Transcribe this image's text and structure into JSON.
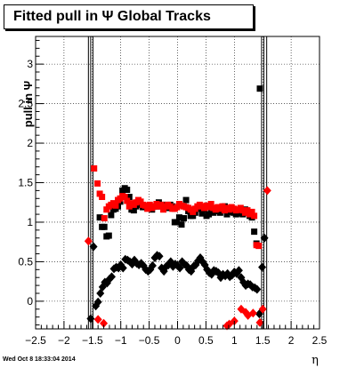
{
  "chart_data": {
    "type": "scatter",
    "title": "Fitted pull in Ψ   Global Tracks",
    "xlabel": "η",
    "ylabel": "pull in Ψ",
    "xlim": [
      -2.5,
      2.5
    ],
    "ylim": [
      -0.35,
      3.35
    ],
    "x_ticks": [
      "−2.5",
      "−2",
      "−1.5",
      "−1",
      "−0.5",
      "0",
      "0.5",
      "1",
      "1.5",
      "2",
      "2.5"
    ],
    "x_tick_values": [
      -2.5,
      -2,
      -1.5,
      -1,
      -0.5,
      0,
      0.5,
      1,
      1.5,
      2,
      2.5
    ],
    "y_ticks": [
      "0",
      "0.5",
      "1",
      "1.5",
      "2",
      "2.5",
      "3"
    ],
    "y_tick_values": [
      0,
      0.5,
      1,
      1.5,
      2,
      2.5,
      3
    ],
    "grid": true,
    "vertical_lines": [
      -1.57,
      -1.53,
      -1.49,
      1.48,
      1.52,
      1.57
    ],
    "series": [
      {
        "marker": "square",
        "color": "#000000",
        "points": [
          [
            -1.37,
            1.06
          ],
          [
            -1.33,
            0.94
          ],
          [
            -1.29,
            0.94
          ],
          [
            -1.25,
            0.82
          ],
          [
            -1.21,
            0.83
          ],
          [
            -1.17,
            1.09
          ],
          [
            -1.13,
            1.16
          ],
          [
            -1.09,
            1.17
          ],
          [
            -1.05,
            1.2
          ],
          [
            -1.01,
            1.26
          ],
          [
            -0.97,
            1.4
          ],
          [
            -0.93,
            1.43
          ],
          [
            -0.89,
            1.41
          ],
          [
            -0.85,
            1.32
          ],
          [
            -0.81,
            1.16
          ],
          [
            -0.77,
            1.15
          ],
          [
            -0.73,
            1.2
          ],
          [
            -0.69,
            1.23
          ],
          [
            -0.65,
            1.22
          ],
          [
            -0.61,
            1.19
          ],
          [
            -0.57,
            1.2
          ],
          [
            -0.53,
            1.18
          ],
          [
            -0.49,
            1.19
          ],
          [
            -0.45,
            1.16
          ],
          [
            -0.41,
            1.2
          ],
          [
            -0.37,
            1.2
          ],
          [
            -0.33,
            1.25
          ],
          [
            -0.29,
            1.2
          ],
          [
            -0.25,
            1.22
          ],
          [
            -0.21,
            1.19
          ],
          [
            -0.17,
            1.18
          ],
          [
            -0.13,
            1.22
          ],
          [
            -0.09,
            1.2
          ],
          [
            -0.05,
            1.0
          ],
          [
            -0.01,
            1.0
          ],
          [
            0.03,
            1.06
          ],
          [
            0.07,
            0.97
          ],
          [
            0.11,
            1.05
          ],
          [
            0.15,
            1.28
          ],
          [
            0.19,
            1.14
          ],
          [
            0.23,
            1.08
          ],
          [
            0.27,
            1.08
          ],
          [
            0.31,
            1.12
          ],
          [
            0.35,
            1.17
          ],
          [
            0.39,
            1.17
          ],
          [
            0.43,
            1.11
          ],
          [
            0.47,
            1.16
          ],
          [
            0.51,
            1.08
          ],
          [
            0.55,
            1.1
          ],
          [
            0.59,
            1.15
          ],
          [
            0.63,
            1.12
          ],
          [
            0.67,
            1.16
          ],
          [
            0.71,
            1.14
          ],
          [
            0.75,
            1.12
          ],
          [
            0.79,
            1.18
          ],
          [
            0.83,
            1.2
          ],
          [
            0.87,
            1.1
          ],
          [
            0.91,
            1.13
          ],
          [
            0.95,
            1.18
          ],
          [
            0.99,
            1.12
          ],
          [
            1.03,
            1.1
          ],
          [
            1.07,
            1.11
          ],
          [
            1.11,
            1.16
          ],
          [
            1.15,
            1.1
          ],
          [
            1.19,
            1.16
          ],
          [
            1.23,
            1.12
          ],
          [
            1.27,
            1.08
          ],
          [
            1.31,
            1.06
          ],
          [
            1.35,
            0.88
          ],
          [
            1.39,
            0.73
          ],
          [
            1.45,
            2.69
          ]
        ]
      },
      {
        "marker": "square",
        "color": "#ff0000",
        "points": [
          [
            -1.47,
            1.68
          ],
          [
            -1.41,
            1.49
          ],
          [
            -1.37,
            1.36
          ],
          [
            -1.33,
            1.32
          ],
          [
            -1.29,
            1.05
          ],
          [
            -1.25,
            1.16
          ],
          [
            -1.21,
            1.2
          ],
          [
            -1.17,
            1.22
          ],
          [
            -1.13,
            1.24
          ],
          [
            -1.09,
            1.21
          ],
          [
            -1.05,
            1.28
          ],
          [
            -1.01,
            1.3
          ],
          [
            -0.97,
            1.33
          ],
          [
            -0.93,
            1.32
          ],
          [
            -0.89,
            1.27
          ],
          [
            -0.85,
            1.2
          ],
          [
            -0.81,
            1.24
          ],
          [
            -0.77,
            1.22
          ],
          [
            -0.73,
            1.25
          ],
          [
            -0.69,
            1.28
          ],
          [
            -0.65,
            1.26
          ],
          [
            -0.61,
            1.22
          ],
          [
            -0.57,
            1.21
          ],
          [
            -0.53,
            1.17
          ],
          [
            -0.49,
            1.22
          ],
          [
            -0.45,
            1.18
          ],
          [
            -0.41,
            1.2
          ],
          [
            -0.37,
            1.23
          ],
          [
            -0.33,
            1.2
          ],
          [
            -0.29,
            1.22
          ],
          [
            -0.25,
            1.16
          ],
          [
            -0.21,
            1.2
          ],
          [
            -0.17,
            1.22
          ],
          [
            -0.13,
            1.2
          ],
          [
            -0.09,
            1.17
          ],
          [
            -0.05,
            1.17
          ],
          [
            -0.01,
            1.19
          ],
          [
            0.03,
            1.23
          ],
          [
            0.07,
            1.21
          ],
          [
            0.11,
            1.2
          ],
          [
            0.15,
            1.19
          ],
          [
            0.19,
            1.18
          ],
          [
            0.23,
            1.16
          ],
          [
            0.27,
            1.13
          ],
          [
            0.31,
            1.17
          ],
          [
            0.35,
            1.2
          ],
          [
            0.39,
            1.22
          ],
          [
            0.43,
            1.2
          ],
          [
            0.47,
            1.18
          ],
          [
            0.51,
            1.21
          ],
          [
            0.55,
            1.19
          ],
          [
            0.59,
            1.23
          ],
          [
            0.63,
            1.18
          ],
          [
            0.67,
            1.16
          ],
          [
            0.71,
            1.19
          ],
          [
            0.75,
            1.17
          ],
          [
            0.79,
            1.2
          ],
          [
            0.83,
            1.15
          ],
          [
            0.87,
            1.18
          ],
          [
            0.91,
            1.16
          ],
          [
            0.95,
            1.19
          ],
          [
            0.99,
            1.17
          ],
          [
            1.03,
            1.15
          ],
          [
            1.07,
            1.16
          ],
          [
            1.11,
            1.18
          ],
          [
            1.15,
            1.15
          ],
          [
            1.19,
            1.12
          ],
          [
            1.23,
            1.15
          ],
          [
            1.27,
            1.1
          ],
          [
            1.31,
            1.13
          ],
          [
            1.35,
            1.08
          ],
          [
            1.39,
            0.71
          ],
          [
            1.43,
            0.7
          ]
        ]
      },
      {
        "marker": "diamond",
        "color": "#000000",
        "points": [
          [
            -1.53,
            -0.22
          ],
          [
            -1.48,
            0.69
          ],
          [
            -1.44,
            -0.06
          ],
          [
            -1.4,
            -0.01
          ],
          [
            -1.36,
            0.1
          ],
          [
            -1.32,
            0.18
          ],
          [
            -1.28,
            0.24
          ],
          [
            -1.24,
            0.23
          ],
          [
            -1.2,
            0.28
          ],
          [
            -1.16,
            0.31
          ],
          [
            -1.12,
            0.41
          ],
          [
            -1.08,
            0.43
          ],
          [
            -1.04,
            0.42
          ],
          [
            -1.0,
            0.46
          ],
          [
            -0.96,
            0.42
          ],
          [
            -0.92,
            0.53
          ],
          [
            -0.88,
            0.52
          ],
          [
            -0.84,
            0.5
          ],
          [
            -0.8,
            0.47
          ],
          [
            -0.76,
            0.52
          ],
          [
            -0.72,
            0.48
          ],
          [
            -0.68,
            0.46
          ],
          [
            -0.64,
            0.48
          ],
          [
            -0.6,
            0.45
          ],
          [
            -0.56,
            0.4
          ],
          [
            -0.52,
            0.38
          ],
          [
            -0.48,
            0.4
          ],
          [
            -0.44,
            0.45
          ],
          [
            -0.4,
            0.55
          ],
          [
            -0.36,
            0.58
          ],
          [
            -0.32,
            0.57
          ],
          [
            -0.28,
            0.42
          ],
          [
            -0.24,
            0.38
          ],
          [
            -0.2,
            0.44
          ],
          [
            -0.16,
            0.46
          ],
          [
            -0.12,
            0.5
          ],
          [
            -0.08,
            0.44
          ],
          [
            -0.04,
            0.47
          ],
          [
            0.0,
            0.45
          ],
          [
            0.04,
            0.42
          ],
          [
            0.08,
            0.5
          ],
          [
            0.12,
            0.47
          ],
          [
            0.16,
            0.45
          ],
          [
            0.2,
            0.4
          ],
          [
            0.24,
            0.38
          ],
          [
            0.28,
            0.44
          ],
          [
            0.32,
            0.46
          ],
          [
            0.36,
            0.51
          ],
          [
            0.4,
            0.55
          ],
          [
            0.44,
            0.5
          ],
          [
            0.48,
            0.46
          ],
          [
            0.52,
            0.4
          ],
          [
            0.56,
            0.36
          ],
          [
            0.6,
            0.34
          ],
          [
            0.64,
            0.39
          ],
          [
            0.68,
            0.38
          ],
          [
            0.72,
            0.36
          ],
          [
            0.76,
            0.3
          ],
          [
            0.8,
            0.34
          ],
          [
            0.84,
            0.32
          ],
          [
            0.88,
            0.35
          ],
          [
            0.92,
            0.31
          ],
          [
            0.96,
            0.33
          ],
          [
            1.0,
            0.37
          ],
          [
            1.04,
            0.35
          ],
          [
            1.08,
            0.39
          ],
          [
            1.12,
            0.3
          ],
          [
            1.16,
            0.24
          ],
          [
            1.2,
            0.2
          ],
          [
            1.24,
            0.22
          ],
          [
            1.28,
            0.21
          ],
          [
            1.32,
            0.18
          ],
          [
            1.36,
            0.17
          ],
          [
            1.4,
            0.15
          ],
          [
            1.44,
            -0.16
          ],
          [
            1.49,
            0.43
          ],
          [
            1.53,
            0.8
          ]
        ]
      },
      {
        "marker": "diamond",
        "color": "#ff0000",
        "points": [
          [
            -1.57,
            0.76
          ],
          [
            -1.4,
            -0.23
          ],
          [
            -1.3,
            -0.28
          ],
          [
            0.87,
            -0.31
          ],
          [
            0.91,
            -0.29
          ],
          [
            1.0,
            -0.25
          ],
          [
            1.12,
            -0.1
          ],
          [
            1.2,
            -0.14
          ],
          [
            1.24,
            -0.18
          ],
          [
            1.33,
            -0.15
          ],
          [
            1.45,
            -0.27
          ],
          [
            1.5,
            -0.1
          ],
          [
            1.58,
            1.4
          ]
        ]
      }
    ]
  },
  "footer": {
    "timestamp": "Wed Oct  8 18:33:04 2014"
  }
}
